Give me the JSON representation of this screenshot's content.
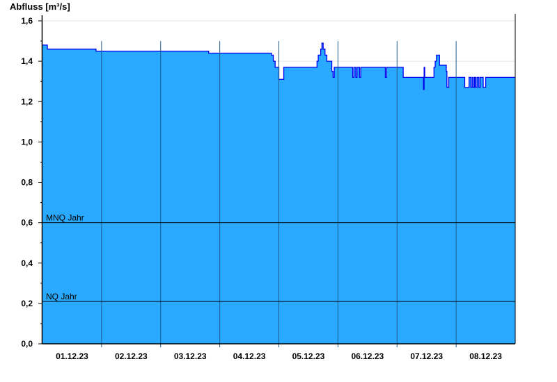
{
  "chart_data": {
    "type": "area",
    "ylabel": "Abfluss [m³/s]",
    "ylim": [
      0,
      1.6
    ],
    "yticks": [
      "0,0",
      "0,2",
      "0,4",
      "0,6",
      "0,8",
      "1,0",
      "1,2",
      "1,4",
      "1,6"
    ],
    "ytick_values": [
      0,
      0.2,
      0.4,
      0.6,
      0.8,
      1.0,
      1.2,
      1.4,
      1.6
    ],
    "xlim": [
      "2023-12-01 00:00",
      "2023-12-09 00:00"
    ],
    "xticks": [
      "01.12.23",
      "02.12.23",
      "03.12.23",
      "04.12.23",
      "05.12.23",
      "06.12.23",
      "07.12.23",
      "08.12.23"
    ],
    "grid": true,
    "colors": {
      "fill": "#29a9ff",
      "line": "#0000ee",
      "daylines": "#1f5a8a",
      "grid": "#e6e6e6"
    },
    "reference_lines": [
      {
        "label": "MNQ Jahr",
        "value": 0.6
      },
      {
        "label": "NQ Jahr",
        "value": 0.21
      }
    ],
    "series": [
      {
        "step": "after",
        "points": [
          [
            "2023-12-01 00:00",
            1.48
          ],
          [
            "2023-12-01 02:00",
            1.46
          ],
          [
            "2023-12-01 21:45",
            1.45
          ],
          [
            "2023-12-03 19:30",
            1.44
          ],
          [
            "2023-12-04 21:00",
            1.43
          ],
          [
            "2023-12-04 21:45",
            1.4
          ],
          [
            "2023-12-04 22:30",
            1.37
          ],
          [
            "2023-12-05 00:00",
            1.31
          ],
          [
            "2023-12-05 02:00",
            1.37
          ],
          [
            "2023-12-05 15:30",
            1.4
          ],
          [
            "2023-12-05 16:00",
            1.43
          ],
          [
            "2023-12-05 17:00",
            1.46
          ],
          [
            "2023-12-05 17:30",
            1.49
          ],
          [
            "2023-12-05 18:00",
            1.46
          ],
          [
            "2023-12-05 18:45",
            1.43
          ],
          [
            "2023-12-05 19:30",
            1.4
          ],
          [
            "2023-12-05 21:30",
            1.35
          ],
          [
            "2023-12-05 22:00",
            1.32
          ],
          [
            "2023-12-05 22:30",
            1.37
          ],
          [
            "2023-12-06 06:00",
            1.32
          ],
          [
            "2023-12-06 06:30",
            1.37
          ],
          [
            "2023-12-06 07:15",
            1.32
          ],
          [
            "2023-12-06 07:45",
            1.37
          ],
          [
            "2023-12-06 08:45",
            1.32
          ],
          [
            "2023-12-06 09:15",
            1.37
          ],
          [
            "2023-12-06 19:15",
            1.32
          ],
          [
            "2023-12-06 19:45",
            1.37
          ],
          [
            "2023-12-07 02:30",
            1.32
          ],
          [
            "2023-12-07 10:45",
            1.26
          ],
          [
            "2023-12-07 11:00",
            1.37
          ],
          [
            "2023-12-07 11:15",
            1.32
          ],
          [
            "2023-12-07 15:00",
            1.37
          ],
          [
            "2023-12-07 15:30",
            1.4
          ],
          [
            "2023-12-07 16:00",
            1.43
          ],
          [
            "2023-12-07 17:15",
            1.38
          ],
          [
            "2023-12-07 20:00",
            1.35
          ],
          [
            "2023-12-07 20:15",
            1.27
          ],
          [
            "2023-12-07 21:00",
            1.32
          ],
          [
            "2023-12-08 03:30",
            1.27
          ],
          [
            "2023-12-08 05:15",
            1.32
          ],
          [
            "2023-12-08 06:00",
            1.27
          ],
          [
            "2023-12-08 06:30",
            1.32
          ],
          [
            "2023-12-08 07:00",
            1.27
          ],
          [
            "2023-12-08 07:30",
            1.32
          ],
          [
            "2023-12-08 08:00",
            1.27
          ],
          [
            "2023-12-08 08:30",
            1.32
          ],
          [
            "2023-12-08 09:15",
            1.27
          ],
          [
            "2023-12-08 09:45",
            1.32
          ],
          [
            "2023-12-08 11:00",
            1.27
          ],
          [
            "2023-12-08 12:00",
            1.32
          ],
          [
            "2023-12-09 00:00",
            1.32
          ]
        ]
      }
    ]
  }
}
